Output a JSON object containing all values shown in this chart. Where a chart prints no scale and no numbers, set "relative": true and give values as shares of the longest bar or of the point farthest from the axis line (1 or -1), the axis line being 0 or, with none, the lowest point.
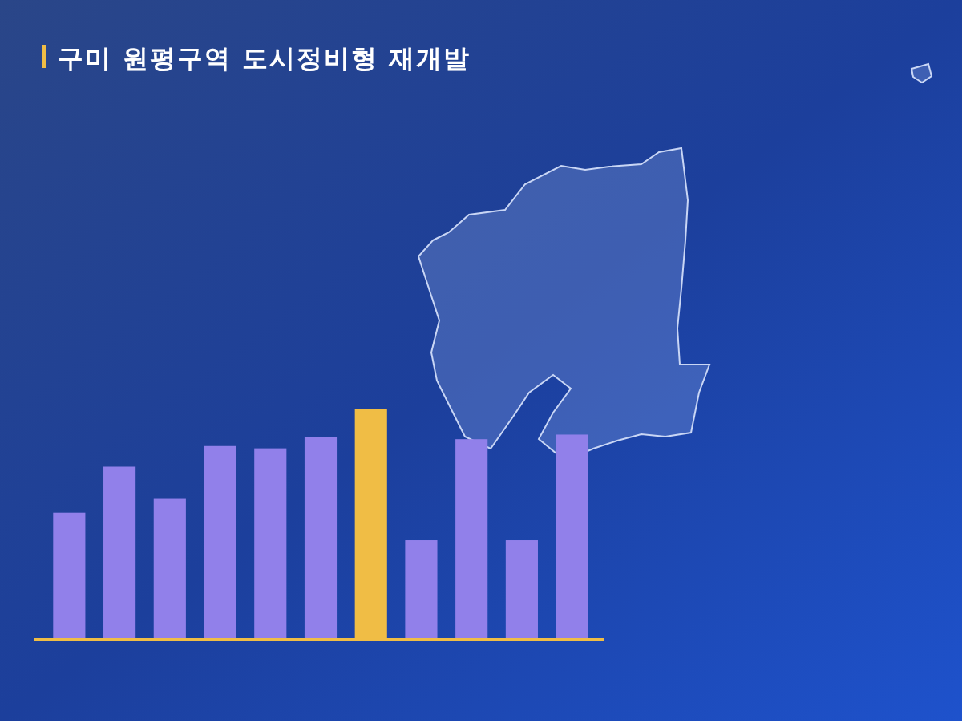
{
  "chart_data": {
    "type": "bar",
    "title": "구미 원평구역 도시정비형 재개발",
    "categories": [
      null,
      null,
      null,
      null,
      null,
      null,
      null,
      null,
      null,
      null,
      null
    ],
    "values": [
      0.55,
      0.75,
      0.61,
      0.84,
      0.83,
      0.88,
      1,
      0.43,
      0.87,
      0.43,
      0.89
    ],
    "colors": [
      "#9180ea",
      "#9180ea",
      "#9180ea",
      "#9180ea",
      "#9180ea",
      "#9180ea",
      "#f0bd45",
      "#9180ea",
      "#9180ea",
      "#9180ea",
      "#9180ea"
    ],
    "relative": true
  }
}
